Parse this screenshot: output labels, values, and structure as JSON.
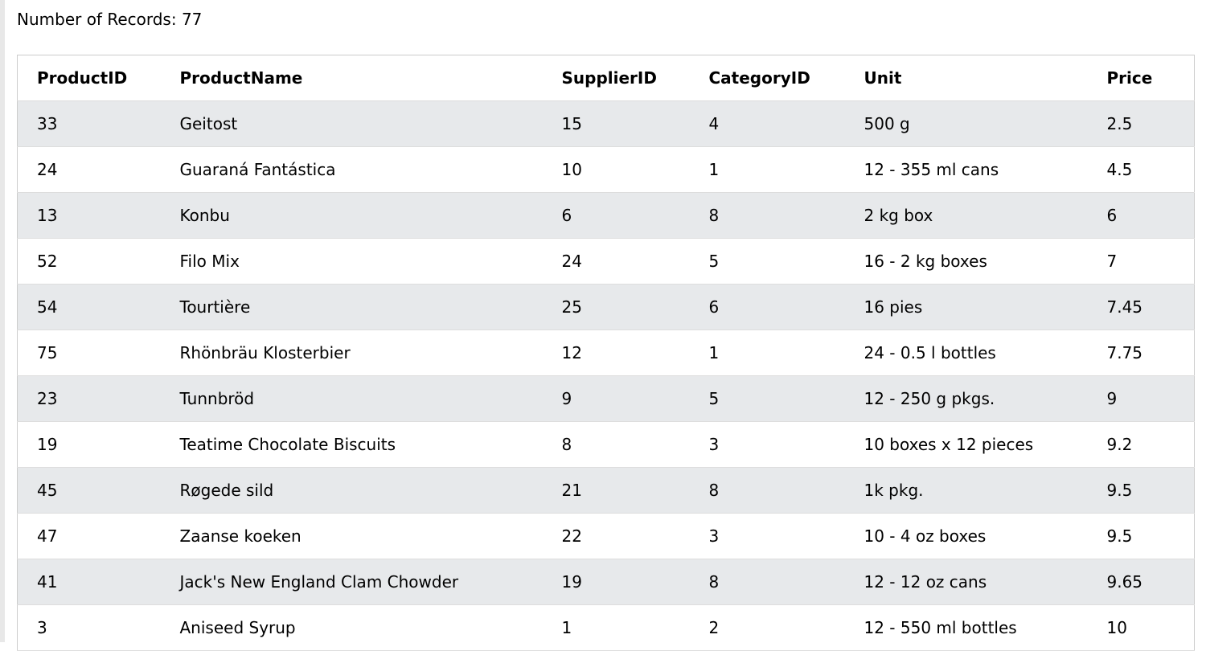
{
  "records_label": "Number of Records: 77",
  "columns": [
    "ProductID",
    "ProductName",
    "SupplierID",
    "CategoryID",
    "Unit",
    "Price"
  ],
  "rows": [
    [
      "33",
      "Geitost",
      "15",
      "4",
      "500 g",
      "2.5"
    ],
    [
      "24",
      "Guaraná Fantástica",
      "10",
      "1",
      "12 - 355 ml cans",
      "4.5"
    ],
    [
      "13",
      "Konbu",
      "6",
      "8",
      "2 kg box",
      "6"
    ],
    [
      "52",
      "Filo Mix",
      "24",
      "5",
      "16 - 2 kg boxes",
      "7"
    ],
    [
      "54",
      "Tourtière",
      "25",
      "6",
      "16 pies",
      "7.45"
    ],
    [
      "75",
      "Rhönbräu Klosterbier",
      "12",
      "1",
      "24 - 0.5 l bottles",
      "7.75"
    ],
    [
      "23",
      "Tunnbröd",
      "9",
      "5",
      "12 - 250 g pkgs.",
      "9"
    ],
    [
      "19",
      "Teatime Chocolate Biscuits",
      "8",
      "3",
      "10 boxes x 12 pieces",
      "9.2"
    ],
    [
      "45",
      "Røgede sild",
      "21",
      "8",
      "1k pkg.",
      "9.5"
    ],
    [
      "47",
      "Zaanse koeken",
      "22",
      "3",
      "10 - 4 oz boxes",
      "9.5"
    ],
    [
      "41",
      "Jack's New England Clam Chowder",
      "19",
      "8",
      "12 - 12 oz cans",
      "9.65"
    ],
    [
      "3",
      "Aniseed Syrup",
      "1",
      "2",
      "12 - 550 ml bottles",
      "10"
    ]
  ],
  "colors": {
    "stripe": "#e7e9eb",
    "border": "#cccccc"
  }
}
